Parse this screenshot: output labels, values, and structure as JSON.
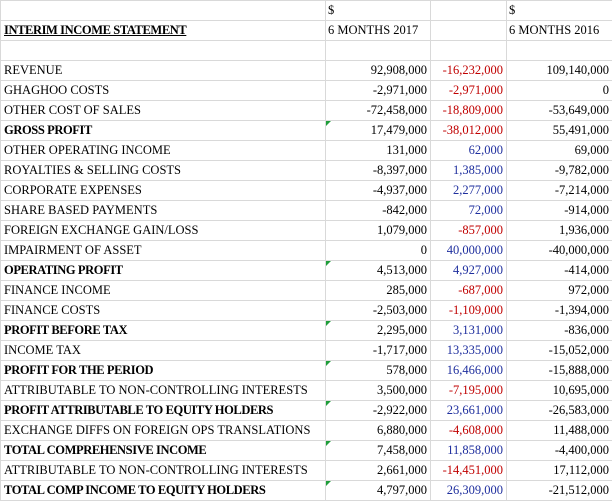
{
  "currency_2017": "$",
  "currency_2016": "$",
  "title": "INTERIM INCOME STATEMENT",
  "col_2017": "6 MONTHS 2017",
  "col_2016": "6 MONTHS 2016",
  "colors": {
    "negative_change": "#c00000",
    "positive_change": "#1f2f9e",
    "comment_flag": "#1f9e3a"
  },
  "rows": [
    {
      "label": "REVENUE",
      "v2017": "92,908,000",
      "diff": "-16,232,000",
      "v2016": "109,140,000",
      "sign": "neg",
      "bold": false,
      "flag": false
    },
    {
      "label": "GHAGHOO COSTS",
      "v2017": "-2,971,000",
      "diff": "-2,971,000",
      "v2016": "0",
      "sign": "neg",
      "bold": false,
      "flag": false
    },
    {
      "label": "OTHER COST OF SALES",
      "v2017": "-72,458,000",
      "diff": "-18,809,000",
      "v2016": "-53,649,000",
      "sign": "neg",
      "bold": false,
      "flag": false
    },
    {
      "label": "GROSS PROFIT",
      "v2017": "17,479,000",
      "diff": "-38,012,000",
      "v2016": "55,491,000",
      "sign": "neg",
      "bold": true,
      "flag": true
    },
    {
      "label": "OTHER OPERATING INCOME",
      "v2017": "131,000",
      "diff": "62,000",
      "v2016": "69,000",
      "sign": "pos",
      "bold": false,
      "flag": false
    },
    {
      "label": "ROYALTIES & SELLING COSTS",
      "v2017": "-8,397,000",
      "diff": "1,385,000",
      "v2016": "-9,782,000",
      "sign": "pos",
      "bold": false,
      "flag": false
    },
    {
      "label": "CORPORATE EXPENSES",
      "v2017": "-4,937,000",
      "diff": "2,277,000",
      "v2016": "-7,214,000",
      "sign": "pos",
      "bold": false,
      "flag": false
    },
    {
      "label": "SHARE BASED PAYMENTS",
      "v2017": "-842,000",
      "diff": "72,000",
      "v2016": "-914,000",
      "sign": "pos",
      "bold": false,
      "flag": false
    },
    {
      "label": "FOREIGN EXCHANGE GAIN/LOSS",
      "v2017": "1,079,000",
      "diff": "-857,000",
      "v2016": "1,936,000",
      "sign": "neg",
      "bold": false,
      "flag": false
    },
    {
      "label": "IMPAIRMENT OF ASSET",
      "v2017": "0",
      "diff": "40,000,000",
      "v2016": "-40,000,000",
      "sign": "pos",
      "bold": false,
      "flag": false
    },
    {
      "label": "OPERATING PROFIT",
      "v2017": "4,513,000",
      "diff": "4,927,000",
      "v2016": "-414,000",
      "sign": "pos",
      "bold": true,
      "flag": true
    },
    {
      "label": "FINANCE INCOME",
      "v2017": "285,000",
      "diff": "-687,000",
      "v2016": "972,000",
      "sign": "neg",
      "bold": false,
      "flag": false
    },
    {
      "label": "FINANCE COSTS",
      "v2017": "-2,503,000",
      "diff": "-1,109,000",
      "v2016": "-1,394,000",
      "sign": "neg",
      "bold": false,
      "flag": false
    },
    {
      "label": "PROFIT BEFORE TAX",
      "v2017": "2,295,000",
      "diff": "3,131,000",
      "v2016": "-836,000",
      "sign": "pos",
      "bold": true,
      "flag": true
    },
    {
      "label": "INCOME TAX",
      "v2017": "-1,717,000",
      "diff": "13,335,000",
      "v2016": "-15,052,000",
      "sign": "pos",
      "bold": false,
      "flag": false
    },
    {
      "label": "PROFIT FOR THE PERIOD",
      "v2017": "578,000",
      "diff": "16,466,000",
      "v2016": "-15,888,000",
      "sign": "pos",
      "bold": true,
      "flag": true
    },
    {
      "label": "ATTRIBUTABLE TO NON-CONTROLLING INTERESTS",
      "v2017": "3,500,000",
      "diff": "-7,195,000",
      "v2016": "10,695,000",
      "sign": "neg",
      "bold": false,
      "flag": false
    },
    {
      "label": "PROFIT ATTRIBUTABLE TO EQUITY HOLDERS",
      "v2017": "-2,922,000",
      "diff": "23,661,000",
      "v2016": "-26,583,000",
      "sign": "pos",
      "bold": true,
      "flag": true
    },
    {
      "label": "EXCHANGE DIFFS ON FOREIGN OPS TRANSLATIONS",
      "v2017": "6,880,000",
      "diff": "-4,608,000",
      "v2016": "11,488,000",
      "sign": "neg",
      "bold": false,
      "flag": false
    },
    {
      "label": "TOTAL COMPREHENSIVE INCOME",
      "v2017": "7,458,000",
      "diff": "11,858,000",
      "v2016": "-4,400,000",
      "sign": "pos",
      "bold": true,
      "flag": true
    },
    {
      "label": "ATTRIBUTABLE TO NON-CONTROLLING INTERESTS",
      "v2017": "2,661,000",
      "diff": "-14,451,000",
      "v2016": "17,112,000",
      "sign": "neg",
      "bold": false,
      "flag": false
    },
    {
      "label": "TOTAL COMP INCOME TO EQUITY HOLDERS",
      "v2017": "4,797,000",
      "diff": "26,309,000",
      "v2016": "-21,512,000",
      "sign": "pos",
      "bold": true,
      "flag": true
    }
  ]
}
